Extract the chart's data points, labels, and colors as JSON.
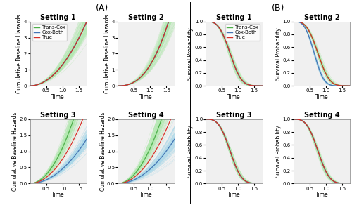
{
  "title_A": "(A)",
  "title_B": "(B)",
  "settings": [
    "Setting 1",
    "Setting 2",
    "Setting 3",
    "Setting 4"
  ],
  "time_max": 1.75,
  "n_points": 200,
  "n_mc": 100,
  "legend_labels": [
    "Trans-Cox",
    "Cox-Both",
    "True"
  ],
  "colors": {
    "trans_cox": "#4daf4a",
    "trans_cox_band": "#b3e8b0",
    "cox_both": "#4575b4",
    "cox_both_band": "#abd9e9",
    "true": "#d73027"
  },
  "cbh_params": {
    "setting1": {
      "true_a": 1.3,
      "true_b": 2.0,
      "green_a": 1.3,
      "green_b": 2.0,
      "blue_a": 1.3,
      "blue_b": 2.0,
      "green_spread": 0.18,
      "blue_spread": 0.01,
      "ymax": 4.0,
      "yticks": [
        0,
        1,
        2,
        3,
        4
      ]
    },
    "setting2": {
      "true_a": 1.3,
      "true_b": 2.5,
      "green_a": 1.3,
      "green_b": 2.5,
      "blue_a": 1.3,
      "blue_b": 2.5,
      "green_spread": 0.2,
      "blue_spread": 0.01,
      "ymax": 4.0,
      "yticks": [
        0,
        1,
        2,
        3,
        4
      ]
    },
    "setting3": {
      "true_a": 0.75,
      "true_b": 2.0,
      "green_a": 1.1,
      "green_b": 2.0,
      "blue_a": 0.45,
      "blue_b": 2.0,
      "green_spread": 0.15,
      "blue_spread": 0.05,
      "ymax": 2.0,
      "yticks": [
        0.0,
        0.5,
        1.0,
        1.5,
        2.0
      ]
    },
    "setting4": {
      "true_a": 0.75,
      "true_b": 2.0,
      "green_a": 1.1,
      "green_b": 2.0,
      "blue_a": 0.45,
      "blue_b": 2.0,
      "green_spread": 0.18,
      "blue_spread": 0.07,
      "ymax": 2.0,
      "yticks": [
        0.0,
        0.5,
        1.0,
        1.5,
        2.0
      ]
    }
  },
  "surv_params": {
    "setting1": {
      "true_lam": 0.85,
      "true_k": 3.2,
      "green_lam": 0.85,
      "green_k": 3.2,
      "blue_lam": 0.85,
      "blue_k": 3.2,
      "green_spread": 0.025,
      "blue_spread": 0.004
    },
    "setting2": {
      "true_lam": 0.85,
      "true_k": 3.2,
      "green_lam": 0.85,
      "green_k": 3.2,
      "blue_lam": 0.72,
      "blue_k": 3.2,
      "green_spread": 0.025,
      "blue_spread": 0.012
    },
    "setting3": {
      "true_lam": 0.85,
      "true_k": 3.2,
      "green_lam": 0.85,
      "green_k": 3.2,
      "blue_lam": 0.85,
      "blue_k": 3.2,
      "green_spread": 0.025,
      "blue_spread": 0.004
    },
    "setting4": {
      "true_lam": 0.85,
      "true_k": 3.2,
      "green_lam": 0.85,
      "green_k": 3.2,
      "blue_lam": 0.85,
      "blue_k": 3.2,
      "green_spread": 0.025,
      "blue_spread": 0.004
    }
  },
  "xlabel": "Time",
  "ylabel_cbh": "Cumulative Baseline Hazards",
  "ylabel_surv": "Survival Probability",
  "xticks": [
    0.5,
    1.0,
    1.5
  ],
  "bg_color": "#f0f0f0",
  "fontsize_title": 7,
  "fontsize_label": 5.5,
  "fontsize_tick": 5,
  "fontsize_legend": 5,
  "fontsize_panel": 9,
  "linewidth_main": 0.9,
  "linewidth_mc": 0.25
}
